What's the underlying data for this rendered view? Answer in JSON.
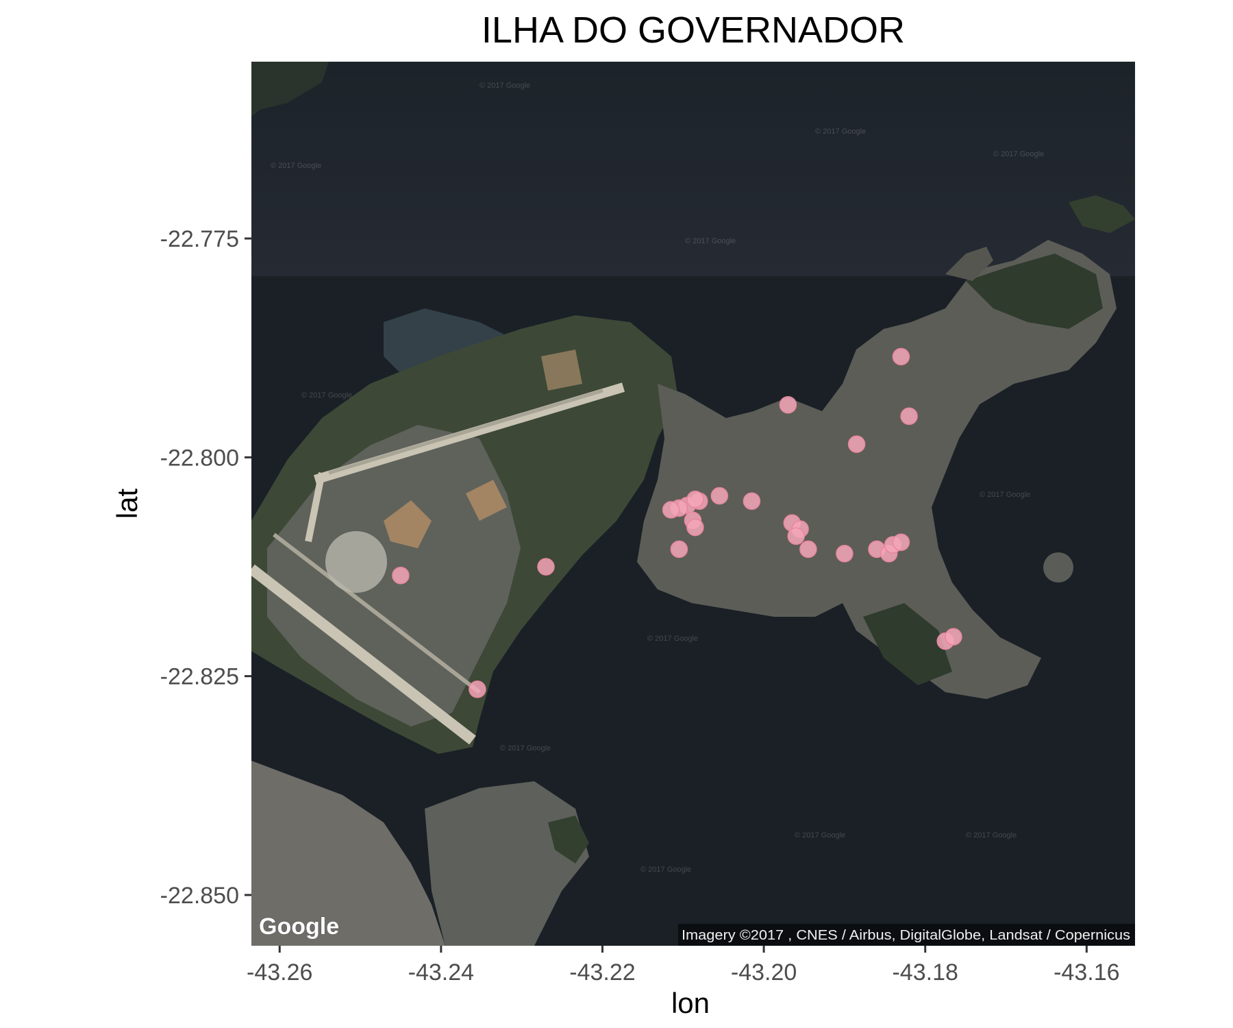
{
  "title": "ILHA DO GOVERNADOR",
  "map": {
    "type": "satellite",
    "logo": "Google",
    "attribution": "Imagery ©2017 , CNES / Airbus, DigitalGlobe, Landsat / Copernicus",
    "watermark": "© 2017 Google",
    "colors": {
      "water": "#1b2127",
      "land": "#3a4236",
      "urban": "#6b6b66",
      "runway": "#c7c2b2",
      "point": "#f4a6b8"
    }
  },
  "chart_data": {
    "type": "scatter",
    "title": "ILHA DO GOVERNADOR",
    "xlabel": "lon",
    "ylabel": "lat",
    "xlim": [
      -43.2635,
      -43.154
    ],
    "ylim": [
      -22.8558,
      -22.7548
    ],
    "x_ticks": [
      -43.26,
      -43.24,
      -43.22,
      -43.2,
      -43.18,
      -43.16
    ],
    "x_tick_labels": [
      "-43.26",
      "-43.24",
      "-43.22",
      "-43.20",
      "-43.18",
      "-43.16"
    ],
    "y_ticks": [
      -22.775,
      -22.8,
      -22.825,
      -22.85
    ],
    "y_tick_labels": [
      "-22.775",
      "-22.800",
      "-22.825",
      "-22.850"
    ],
    "grid": false,
    "points": [
      {
        "x": -43.183,
        "y": -22.7885
      },
      {
        "x": -43.197,
        "y": -22.794
      },
      {
        "x": -43.182,
        "y": -22.7953
      },
      {
        "x": -43.1885,
        "y": -22.7985
      },
      {
        "x": -43.2055,
        "y": -22.8044
      },
      {
        "x": -43.2015,
        "y": -22.805
      },
      {
        "x": -43.208,
        "y": -22.805
      },
      {
        "x": -43.2095,
        "y": -22.8055
      },
      {
        "x": -43.2085,
        "y": -22.8048
      },
      {
        "x": -43.2105,
        "y": -22.8058
      },
      {
        "x": -43.2115,
        "y": -22.806
      },
      {
        "x": -43.2088,
        "y": -22.8072
      },
      {
        "x": -43.2085,
        "y": -22.808
      },
      {
        "x": -43.1965,
        "y": -22.8075
      },
      {
        "x": -43.1955,
        "y": -22.8082
      },
      {
        "x": -43.196,
        "y": -22.809
      },
      {
        "x": -43.1945,
        "y": -22.8105
      },
      {
        "x": -43.2105,
        "y": -22.8105
      },
      {
        "x": -43.19,
        "y": -22.811
      },
      {
        "x": -43.186,
        "y": -22.8105
      },
      {
        "x": -43.1845,
        "y": -22.811
      },
      {
        "x": -43.184,
        "y": -22.81
      },
      {
        "x": -43.183,
        "y": -22.8097
      },
      {
        "x": -43.245,
        "y": -22.8135
      },
      {
        "x": -43.227,
        "y": -22.8125
      },
      {
        "x": -43.1775,
        "y": -22.821
      },
      {
        "x": -43.1765,
        "y": -22.8205
      },
      {
        "x": -43.2355,
        "y": -22.8265
      }
    ]
  }
}
